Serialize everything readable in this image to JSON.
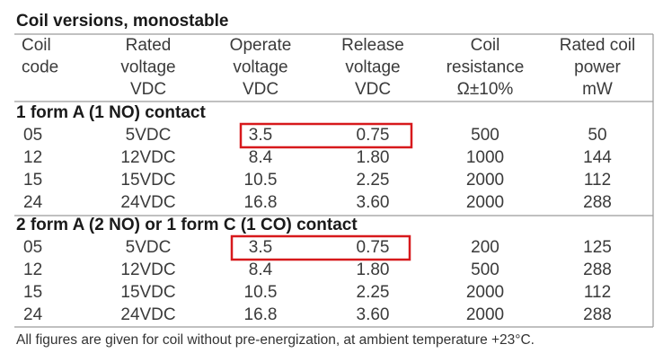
{
  "title": "Coil versions, monostable",
  "header": [
    [
      "Coil",
      "code"
    ],
    [
      "Rated",
      "voltage",
      "VDC"
    ],
    [
      "Operate",
      "voltage",
      "VDC"
    ],
    [
      "Release",
      "voltage",
      "VDC"
    ],
    [
      "Coil",
      "resistance",
      "Ω±10%"
    ],
    [
      "Rated coil",
      "power",
      "mW"
    ]
  ],
  "sections": [
    {
      "title": "1 form A (1 NO) contact",
      "rows": [
        [
          "05",
          "5VDC",
          "3.5",
          "0.75",
          "500",
          "50"
        ],
        [
          "12",
          "12VDC",
          "8.4",
          "1.80",
          "1000",
          "144"
        ],
        [
          "15",
          "15VDC",
          "10.5",
          "2.25",
          "2000",
          "112"
        ],
        [
          "24",
          "24VDC",
          "16.8",
          "3.60",
          "2000",
          "288"
        ]
      ]
    },
    {
      "title": "2 form A (2 NO) or 1 form C (1 CO) contact",
      "rows": [
        [
          "05",
          "5VDC",
          "3.5",
          "0.75",
          "200",
          "125"
        ],
        [
          "12",
          "12VDC",
          "8.4",
          "1.80",
          "500",
          "288"
        ],
        [
          "15",
          "15VDC",
          "10.5",
          "2.25",
          "2000",
          "112"
        ],
        [
          "24",
          "24VDC",
          "16.8",
          "3.60",
          "2000",
          "288"
        ]
      ]
    }
  ],
  "footnote": "All figures are given for coil without pre-energization, at ambient temperature +23°C."
}
